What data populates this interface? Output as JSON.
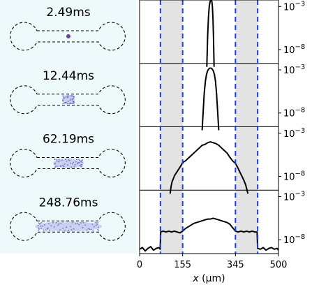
{
  "left_panel": {
    "background": "#eef9fb"
  },
  "chart_data": {
    "type": "line",
    "xlabel_italic": "x",
    "xlabel_unit": "(μm)",
    "xlim": [
      0,
      500
    ],
    "x_ticks": [
      0,
      155,
      345,
      500
    ],
    "y_scale": "log",
    "y_tick_labels": [
      {
        "base": "10",
        "exp": "−3"
      },
      {
        "base": "10",
        "exp": "−8"
      }
    ],
    "channel_x": [
      75,
      155,
      345,
      425
    ],
    "shaded_regions": [
      [
        75,
        155
      ],
      [
        345,
        425
      ]
    ],
    "boundary_color": "#1f3fd6",
    "shade_color": "#e3e3e3",
    "line_color": "#000000",
    "grid": false,
    "panels": [
      {
        "time": "2.49ms",
        "x": [
          242,
          245,
          248,
          251,
          254,
          256,
          258,
          260,
          262,
          264,
          266,
          268
        ],
        "y_log": [
          -10,
          -6.4,
          -4.2,
          -2.9,
          -2.4,
          -2.3,
          -2.3,
          -2.4,
          -3.0,
          -4.4,
          -6.6,
          -10
        ]
      },
      {
        "time": "12.44ms",
        "x": [
          225,
          229,
          233,
          237,
          241,
          245,
          249,
          253,
          257,
          261,
          265,
          269,
          273,
          277,
          281,
          285
        ],
        "y_log": [
          -10,
          -7.8,
          -5.6,
          -4.3,
          -3.5,
          -3.1,
          -2.9,
          -2.8,
          -2.8,
          -2.9,
          -3.1,
          -3.5,
          -4.3,
          -5.7,
          -7.8,
          -10
        ]
      },
      {
        "time": "62.19ms",
        "x": [
          110,
          113,
          117,
          121,
          126,
          132,
          138,
          144,
          150,
          155,
          165,
          175,
          185,
          195,
          205,
          215,
          225,
          235,
          245,
          255,
          265,
          275,
          285,
          295,
          305,
          315,
          325,
          335,
          345,
          352,
          358,
          364,
          370,
          376,
          382,
          386,
          390
        ],
        "y_log": [
          -10,
          -9.2,
          -8.6,
          -8.3,
          -7.9,
          -7.6,
          -7.3,
          -7.0,
          -6.7,
          -6.4,
          -6.2,
          -5.9,
          -5.6,
          -5.3,
          -5.0,
          -4.7,
          -4.4,
          -4.3,
          -4.1,
          -4.0,
          -4.1,
          -4.2,
          -4.4,
          -4.7,
          -5.0,
          -5.3,
          -5.8,
          -6.2,
          -6.5,
          -6.9,
          -7.3,
          -7.7,
          -8.1,
          -8.5,
          -9.0,
          -9.5,
          -10
        ]
      },
      {
        "time": "248.76ms",
        "x": [
          0,
          10,
          20,
          30,
          40,
          50,
          60,
          70,
          74,
          76,
          85,
          95,
          105,
          115,
          125,
          135,
          145,
          155,
          165,
          175,
          185,
          195,
          205,
          215,
          225,
          235,
          245,
          255,
          265,
          275,
          285,
          295,
          305,
          315,
          325,
          335,
          345,
          355,
          365,
          375,
          385,
          395,
          405,
          415,
          423,
          425,
          435,
          445,
          455,
          465,
          475,
          485,
          495,
          500
        ],
        "y_log": [
          -9.1,
          -8.9,
          -9.3,
          -9.0,
          -8.8,
          -9.2,
          -9.0,
          -8.9,
          -9.1,
          -7.1,
          -7.0,
          -7.1,
          -7.0,
          -7.1,
          -7.0,
          -7.1,
          -7.2,
          -7.0,
          -6.7,
          -6.5,
          -6.3,
          -6.1,
          -6.0,
          -5.9,
          -5.8,
          -5.7,
          -5.6,
          -5.6,
          -5.5,
          -5.6,
          -5.7,
          -5.8,
          -5.9,
          -6.0,
          -6.2,
          -6.6,
          -7.0,
          -7.1,
          -7.0,
          -7.1,
          -7.0,
          -7.1,
          -7.0,
          -7.1,
          -7.1,
          -9.0,
          -9.1,
          -8.9,
          -9.2,
          -9.0,
          -8.9,
          -9.1,
          -9.0,
          -9.2
        ]
      }
    ]
  }
}
